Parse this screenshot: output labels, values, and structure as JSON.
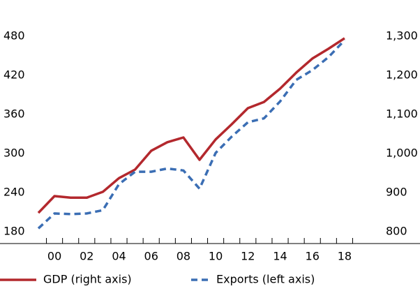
{
  "chart_data": {
    "type": "line",
    "categories": [
      null,
      "00",
      null,
      "02",
      null,
      "04",
      null,
      "06",
      null,
      "08",
      null,
      "10",
      null,
      "12",
      null,
      "14",
      null,
      "16",
      null,
      "18"
    ],
    "series": [
      {
        "name": "GDP (right axis)",
        "color": "#b3282d",
        "axis": "y2",
        "dash": false,
        "values": [
          848,
          891,
          887,
          887,
          902,
          937,
          959,
          1007,
          1029,
          1041,
          984,
          1036,
          1075,
          1116,
          1132,
          1166,
          1207,
          1243,
          1268,
          1295
        ]
      },
      {
        "name": "Exports (left axis)",
        "color": "#3b6eb4",
        "axis": "y",
        "dash": true,
        "values": [
          185,
          208,
          207,
          208,
          213,
          253,
          272,
          272,
          277,
          274,
          246,
          301,
          326,
          348,
          354,
          380,
          413,
          428,
          448,
          474
        ]
      }
    ],
    "ylim": [
      165,
      495
    ],
    "yticks": [
      180,
      240,
      300,
      360,
      420,
      480
    ],
    "y2lim": [
      775,
      1325
    ],
    "y2ticks": [
      800,
      900,
      {
        "value": 1000,
        "label": "1,000"
      },
      {
        "value": 1100,
        "label": "1,100"
      },
      {
        "value": 1200,
        "label": "1,200"
      },
      {
        "value": 1300,
        "label": "1,300"
      }
    ],
    "grid": false
  }
}
